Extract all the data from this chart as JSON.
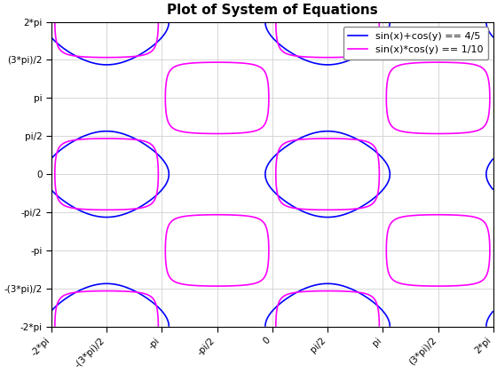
{
  "title": "Plot of System of Equations",
  "eq1_label": "sin(x)+cos(y) == 4/5",
  "eq2_label": "sin(x)*cos(y) == 1/10",
  "eq1_value": 0.8,
  "eq2_value": 0.1,
  "xlim": [
    -6.283185307,
    6.283185307
  ],
  "ylim": [
    -6.283185307,
    6.283185307
  ],
  "color1": "#0000ff",
  "color2": "#ff00ff",
  "linewidth": 1.2,
  "background_color": "#ffffff",
  "axes_background": "#ffffff",
  "grid_color": "#d0d0d0",
  "xticks": [
    -6.283185307,
    -4.71238898,
    -3.14159265,
    -1.5707963,
    0,
    1.5707963,
    3.14159265,
    4.71238898,
    6.283185307
  ],
  "yticks": [
    -6.283185307,
    -4.71238898,
    -3.14159265,
    -1.5707963,
    0,
    1.5707963,
    3.14159265,
    4.71238898,
    6.283185307
  ],
  "xtick_labels": [
    "-2*pi",
    "-(3*pi)/2",
    "-pi",
    "-pi/2",
    "0",
    "pi/2",
    "pi",
    "(3*pi)/2",
    "2*pi"
  ],
  "ytick_labels": [
    "-2*pi",
    "-(3*pi)/2",
    "-pi",
    "-pi/2",
    "0",
    "pi/2",
    "pi",
    "(3*pi)/2",
    "2*pi"
  ],
  "resolution": 1000,
  "title_fontsize": 11,
  "tick_fontsize": 7.5,
  "legend_fontsize": 8
}
